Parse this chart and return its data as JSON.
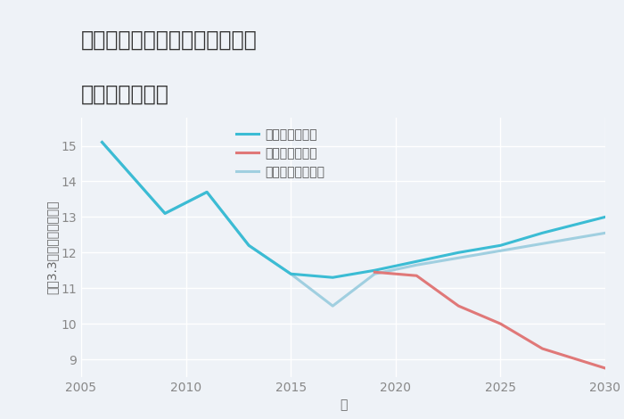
{
  "title_line1": "三重県桑名市長島町長島中町の",
  "title_line2": "土地の価格推移",
  "xlabel": "年",
  "ylabel": "平（3.3㎡）単価（万円）",
  "background_color": "#eef2f7",
  "plot_background": "#eef2f7",
  "grid_color": "#ffffff",
  "good_scenario": {
    "label": "グッドシナリオ",
    "color": "#3bbcd4",
    "x": [
      2006,
      2009,
      2011,
      2013,
      2015,
      2017,
      2019,
      2021,
      2023,
      2025,
      2027,
      2030
    ],
    "y": [
      15.1,
      13.1,
      13.7,
      12.2,
      11.4,
      11.3,
      11.5,
      11.75,
      12.0,
      12.2,
      12.55,
      13.0
    ]
  },
  "bad_scenario": {
    "label": "バッドシナリオ",
    "color": "#e07878",
    "x": [
      2019,
      2021,
      2023,
      2025,
      2027,
      2030
    ],
    "y": [
      11.45,
      11.35,
      10.5,
      10.0,
      9.3,
      8.75
    ]
  },
  "normal_scenario": {
    "label": "ノーマルシナリオ",
    "color": "#a0cfe0",
    "x": [
      2006,
      2009,
      2011,
      2013,
      2015,
      2017,
      2019,
      2021,
      2023,
      2025,
      2027,
      2030
    ],
    "y": [
      15.1,
      13.1,
      13.7,
      12.2,
      11.4,
      10.5,
      11.4,
      11.65,
      11.85,
      12.05,
      12.25,
      12.55
    ]
  },
  "ylim": [
    8.5,
    15.8
  ],
  "xlim": [
    2005,
    2030
  ],
  "yticks": [
    9,
    10,
    11,
    12,
    13,
    14,
    15
  ],
  "xticks": [
    2005,
    2010,
    2015,
    2020,
    2025,
    2030
  ],
  "title_fontsize": 17,
  "axis_fontsize": 10,
  "legend_fontsize": 10,
  "tick_fontsize": 10,
  "line_width": 2.2
}
